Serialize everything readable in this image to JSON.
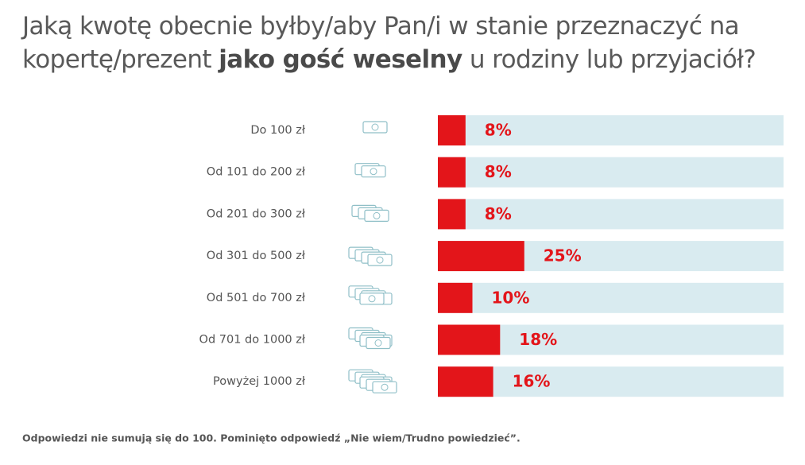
{
  "chart_data": {
    "type": "hbar",
    "title": [
      "Jaką kwotę obecnie byłby/aby Pan/i w stanie przeznaczyć na kopertę/prezent",
      "jako gość weselny",
      "u rodziny lub przyjaciół?"
    ],
    "categories": [
      "Do 100 zł",
      "Od 101 do 200 zł",
      "Od 201 do 300 zł",
      "Od 301 do 500 zł",
      "Od 501 do 700 zł",
      "Od 701 do 1000 zł",
      "Powyżej 1000 zł"
    ],
    "values": [
      8,
      8,
      8,
      25,
      10,
      18,
      16
    ],
    "value_labels": [
      "8%",
      "8%",
      "8%",
      "25%",
      "10%",
      "18%",
      "16%"
    ],
    "xlim": [
      0,
      100
    ],
    "color": "#e3151a",
    "track_color": "#d9ebf0",
    "footnote": "Odpowiedzi nie sumują się do 100. Pominięto odpowiedź „Nie wiem/Trudno powiedzieć”."
  }
}
